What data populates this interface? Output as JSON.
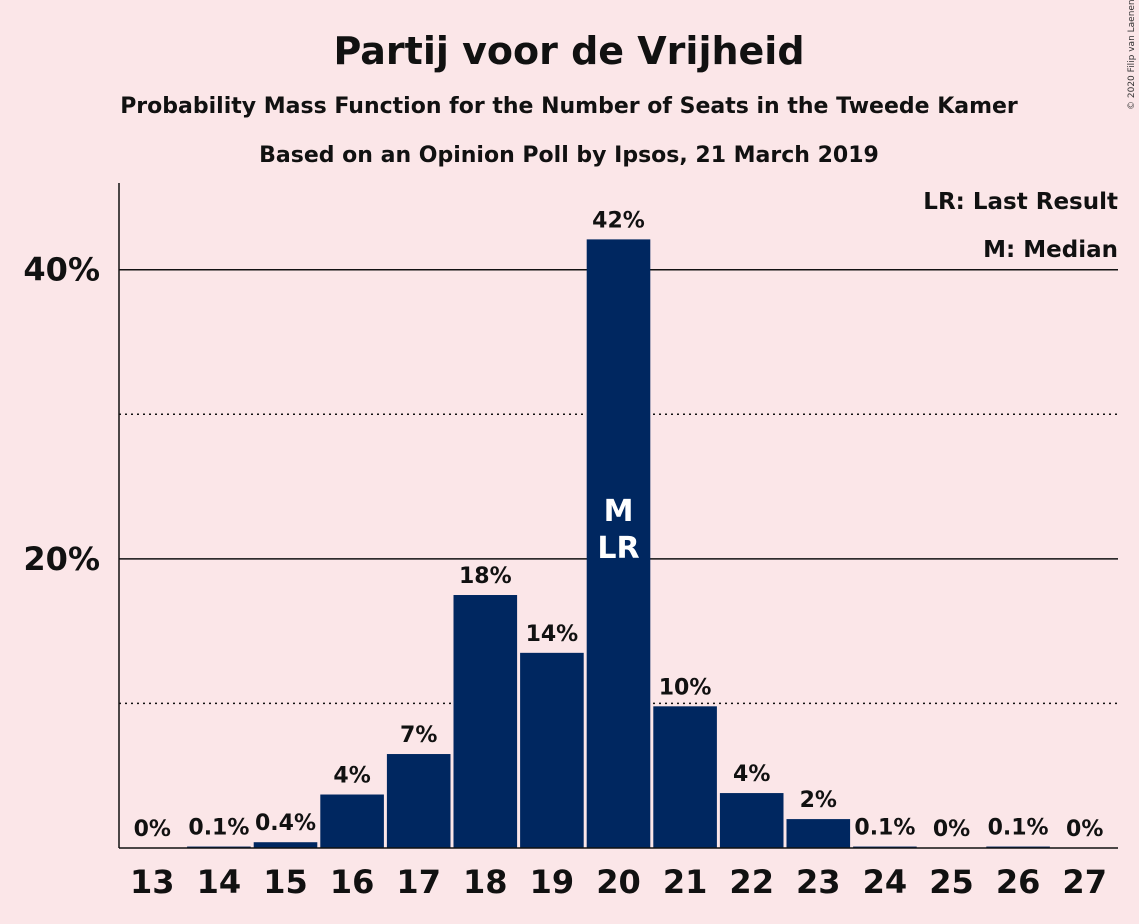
{
  "title": "Partij voor de Vrijheid",
  "subtitle1": "Probability Mass Function for the Number of Seats in the Tweede Kamer",
  "subtitle2": "Based on an Opinion Poll by Ipsos, 21 March 2019",
  "copyright": "© 2020 Filip van Laenen",
  "legend": {
    "last_result": "LR: Last Result",
    "median": "M: Median"
  },
  "colors": {
    "background": "#fbe6e8",
    "bar": "#002760",
    "text": "#111111"
  },
  "chart_data": {
    "type": "bar",
    "categories": [
      "13",
      "14",
      "15",
      "16",
      "17",
      "18",
      "19",
      "20",
      "21",
      "22",
      "23",
      "24",
      "25",
      "26",
      "27"
    ],
    "values": [
      0,
      0.1,
      0.4,
      3.7,
      6.5,
      17.5,
      13.5,
      42.1,
      9.8,
      3.8,
      2.0,
      0.1,
      0,
      0.1,
      0
    ],
    "data_labels": [
      "0%",
      "0.1%",
      "0.4%",
      "4%",
      "7%",
      "18%",
      "14%",
      "42%",
      "10%",
      "4%",
      "2%",
      "0.1%",
      "0%",
      "0.1%",
      "0%"
    ],
    "ylim": [
      0,
      46
    ],
    "y_ticks": [
      20,
      40
    ],
    "y_tick_labels": [
      "20%",
      "40%"
    ],
    "y_minor_ticks": [
      10,
      30
    ],
    "grid": true,
    "legend_position": "top-right",
    "median_category": "20",
    "last_result_category": "20",
    "median_marker": "M",
    "last_result_marker": "LR",
    "xlabel": "",
    "ylabel": ""
  }
}
